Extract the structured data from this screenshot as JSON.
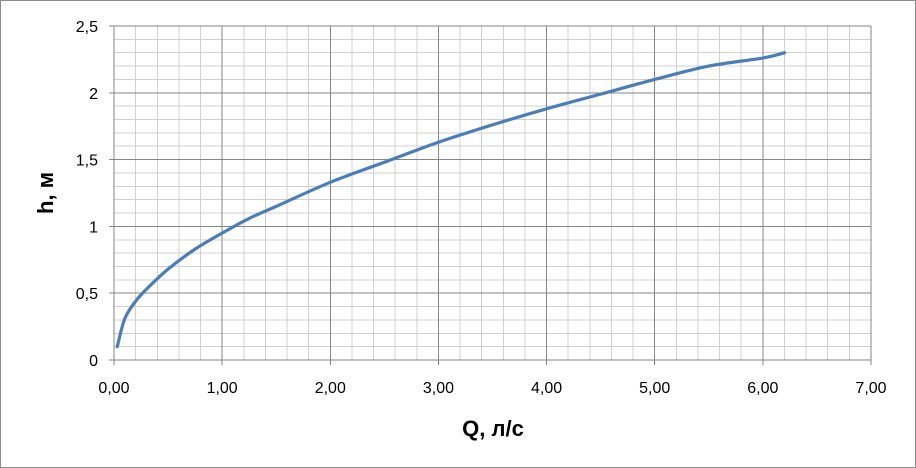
{
  "chart_data": {
    "type": "line",
    "title": "",
    "xlabel": "Q, л/с",
    "ylabel": "h, м",
    "xlim": [
      0,
      7
    ],
    "ylim": [
      0,
      2.5
    ],
    "x_ticks": [
      {
        "value": 0,
        "label": "0,00"
      },
      {
        "value": 1,
        "label": "1,00"
      },
      {
        "value": 2,
        "label": "2,00"
      },
      {
        "value": 3,
        "label": "3,00"
      },
      {
        "value": 4,
        "label": "4,00"
      },
      {
        "value": 5,
        "label": "5,00"
      },
      {
        "value": 6,
        "label": "6,00"
      },
      {
        "value": 7,
        "label": "7,00"
      }
    ],
    "y_ticks": [
      {
        "value": 0,
        "label": "0"
      },
      {
        "value": 0.5,
        "label": "0,5"
      },
      {
        "value": 1,
        "label": "1"
      },
      {
        "value": 1.5,
        "label": "1,5"
      },
      {
        "value": 2,
        "label": "2"
      },
      {
        "value": 2.5,
        "label": "2,5"
      }
    ],
    "x_minor_step": 0.2,
    "y_minor_step": 0.1,
    "grid": true,
    "legend": "none",
    "series": [
      {
        "color": "#4a7ebb",
        "x": [
          0.03,
          0.1,
          0.2,
          0.3,
          0.5,
          0.75,
          1.0,
          1.25,
          1.5,
          2.0,
          2.5,
          3.0,
          3.5,
          4.0,
          4.5,
          5.0,
          5.5,
          6.0,
          6.2
        ],
        "y": [
          0.1,
          0.31,
          0.44,
          0.53,
          0.68,
          0.83,
          0.95,
          1.06,
          1.15,
          1.33,
          1.48,
          1.63,
          1.76,
          1.88,
          1.99,
          2.1,
          2.2,
          2.26,
          2.3
        ]
      }
    ]
  }
}
